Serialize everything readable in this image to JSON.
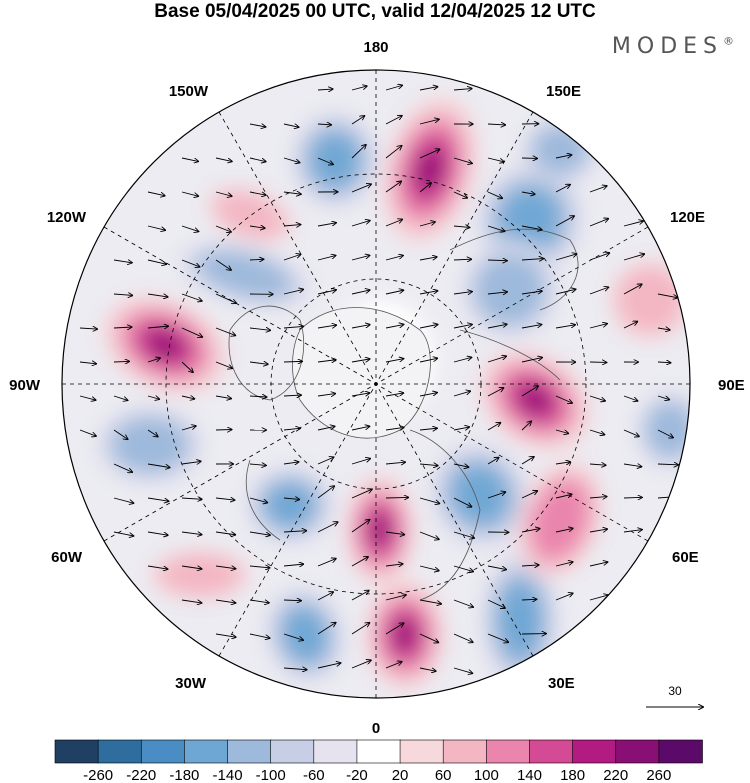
{
  "title": "Base 05/04/2025 00 UTC, valid 12/04/2025 12 UTC",
  "brand": "MODES",
  "brand_mark": "®",
  "longitude_labels": {
    "top": "180",
    "bottom": "0",
    "left": "90W",
    "right": "90E",
    "upper_left_1": "150W",
    "upper_left_2": "120W",
    "lower_left_1": "60W",
    "lower_left_2": "30W",
    "upper_right_1": "150E",
    "upper_right_2": "120E",
    "lower_right_1": "60E",
    "lower_right_2": "30E"
  },
  "reference_vector": {
    "label": "30"
  },
  "colorbar": {
    "tick_labels": [
      "-260",
      "-220",
      "-180",
      "-140",
      "-100",
      "-60",
      "-20",
      "20",
      "60",
      "100",
      "140",
      "180",
      "220",
      "260"
    ],
    "colors": [
      "#1f3f63",
      "#2e6d9e",
      "#4a8dc4",
      "#6fa7d4",
      "#9db9dc",
      "#c7cfe6",
      "#e6e3ef",
      "#ffffff",
      "#f7d8dc",
      "#f3b6c3",
      "#ea85ad",
      "#d44a95",
      "#b21b82",
      "#8a0f75",
      "#5b0a6a"
    ]
  },
  "anomalies": [
    {
      "sign": "pos",
      "level": 5
    },
    {
      "sign": "neg",
      "level": 4
    },
    {
      "sign": "pos",
      "level": 5
    },
    {
      "sign": "neg",
      "level": 4
    },
    {
      "sign": "pos",
      "level": 5
    },
    {
      "sign": "neg",
      "level": 4
    },
    {
      "sign": "pos",
      "level": 5
    },
    {
      "sign": "neg",
      "level": 4
    }
  ]
}
